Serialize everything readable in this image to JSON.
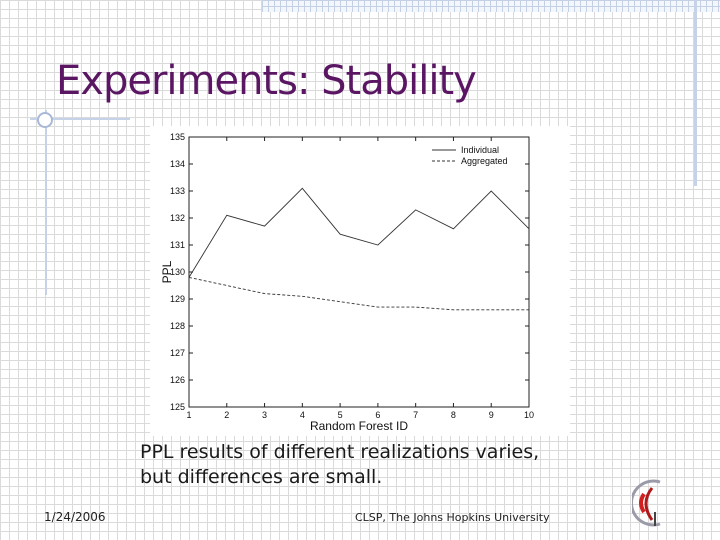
{
  "slide": {
    "title": "Experiments: Stability",
    "caption_lines": [
      "PPL results of different realizations varies,",
      "but differences are small."
    ],
    "footer_date": "1/24/2006",
    "footer_org": "CLSP, The Johns Hopkins University"
  },
  "colors": {
    "title": "#5a1663",
    "individual_line": "#333333",
    "aggregated_line": "#333333"
  },
  "chart_data": {
    "type": "line",
    "title": "",
    "xlabel": "Random Forest ID",
    "ylabel": "PPL",
    "x": [
      1,
      2,
      3,
      4,
      5,
      6,
      7,
      8,
      9,
      10
    ],
    "xlim": [
      1,
      10
    ],
    "ylim": [
      125,
      135
    ],
    "xticks": [
      1,
      2,
      3,
      4,
      5,
      6,
      7,
      8,
      9,
      10
    ],
    "yticks": [
      125,
      126,
      127,
      128,
      129,
      130,
      131,
      132,
      133,
      134,
      135
    ],
    "grid": false,
    "legend_position": "top-right",
    "series": [
      {
        "name": "Individual",
        "style": "solid",
        "values": [
          129.8,
          132.1,
          131.7,
          133.1,
          131.4,
          131.0,
          132.3,
          131.6,
          133.0,
          131.6
        ]
      },
      {
        "name": "Aggregated",
        "style": "dashed",
        "values": [
          129.8,
          129.5,
          129.2,
          129.1,
          128.9,
          128.7,
          128.7,
          128.6,
          128.6,
          128.6
        ]
      }
    ]
  }
}
